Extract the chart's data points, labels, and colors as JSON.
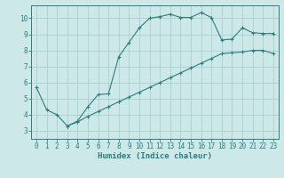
{
  "line1_x": [
    0,
    1,
    2,
    3,
    4,
    5,
    6,
    7,
    8,
    9,
    10,
    11,
    12,
    13,
    14,
    15,
    16,
    17,
    18,
    19,
    20,
    21,
    22,
    23
  ],
  "line1_y": [
    5.7,
    4.3,
    4.0,
    3.3,
    3.6,
    4.5,
    5.25,
    5.3,
    7.6,
    8.5,
    9.4,
    10.0,
    10.1,
    10.25,
    10.05,
    10.05,
    10.35,
    10.05,
    8.65,
    8.7,
    9.4,
    9.1,
    9.05,
    9.05
  ],
  "line2_x": [
    3,
    4,
    5,
    6,
    7,
    8,
    9,
    10,
    11,
    12,
    13,
    14,
    15,
    16,
    17,
    18,
    19,
    20,
    21,
    22,
    23
  ],
  "line2_y": [
    3.3,
    3.55,
    3.9,
    4.2,
    4.5,
    4.8,
    5.1,
    5.4,
    5.7,
    6.0,
    6.3,
    6.6,
    6.9,
    7.2,
    7.5,
    7.8,
    7.85,
    7.9,
    8.0,
    8.0,
    7.8
  ],
  "line_color": "#2e7d7d",
  "bg_color": "#cce8e8",
  "grid_color": "#aacfcf",
  "xlabel": "Humidex (Indice chaleur)",
  "xlim": [
    -0.5,
    23.5
  ],
  "ylim": [
    2.5,
    10.8
  ],
  "xticks": [
    0,
    1,
    2,
    3,
    4,
    5,
    6,
    7,
    8,
    9,
    10,
    11,
    12,
    13,
    14,
    15,
    16,
    17,
    18,
    19,
    20,
    21,
    22,
    23
  ],
  "yticks": [
    3,
    4,
    5,
    6,
    7,
    8,
    9,
    10
  ],
  "tick_fontsize": 5.5,
  "xlabel_fontsize": 6.5
}
